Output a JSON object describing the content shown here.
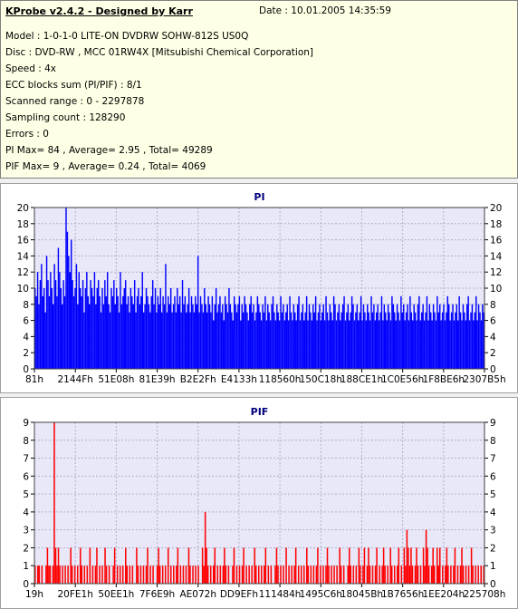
{
  "info": {
    "title": "KProbe v2.4.2 - Designed by Karr",
    "date": "Date :  10.01.2005 14:35:59",
    "lines": [
      "Model : 1-0-1-0 LITE-ON DVDRW SOHW-812S  US0Q",
      "Disc : DVD-RW , MCC 01RW4X   [Mitsubishi Chemical Corporation]",
      "Speed : 4x",
      "ECC blocks sum (PI/PIF) : 8/1",
      "Scanned range : 0 - 2297878",
      "Sampling count : 128290",
      "Errors : 0",
      "PI Max= 84 , Average= 2.95 , Total= 49289",
      "PIF Max= 9 , Average= 0.24 , Total= 4069"
    ]
  },
  "colors": {
    "pi": "#0000ff",
    "pif": "#ff0000",
    "plot_bg": "#e8e8f8",
    "grid": "#b0b0d0"
  },
  "chart_data": [
    {
      "type": "bar",
      "title": "PI",
      "ylim": [
        0,
        20
      ],
      "yticks": [
        0,
        2,
        4,
        6,
        8,
        10,
        12,
        14,
        16,
        18,
        20
      ],
      "xtick_labels": [
        "81h",
        "2144Fh",
        "51E08h",
        "81E39h",
        "B2E2Fh",
        "E4133h",
        "118560h",
        "150C18h",
        "188CE1h",
        "1C0E56h",
        "1F8BE6h",
        "2307B5h"
      ],
      "grid": true,
      "values": [
        10,
        9,
        12,
        8,
        11,
        13,
        9,
        10,
        7,
        14,
        11,
        9,
        12,
        10,
        8,
        13,
        11,
        9,
        15,
        12,
        10,
        8,
        11,
        9,
        20,
        17,
        14,
        12,
        16,
        11,
        9,
        10,
        13,
        8,
        12,
        10,
        9,
        11,
        7,
        10,
        12,
        9,
        8,
        11,
        10,
        9,
        12,
        8,
        10,
        11,
        9,
        7,
        10,
        8,
        11,
        9,
        12,
        8,
        7,
        10,
        9,
        11,
        8,
        10,
        9,
        7,
        12,
        8,
        9,
        10,
        11,
        8,
        9,
        7,
        10,
        9,
        8,
        11,
        7,
        9,
        10,
        8,
        9,
        12,
        7,
        8,
        10,
        9,
        8,
        7,
        9,
        11,
        8,
        10,
        7,
        9,
        8,
        10,
        7,
        9,
        8,
        13,
        7,
        9,
        8,
        10,
        7,
        8,
        9,
        7,
        10,
        8,
        9,
        7,
        11,
        8,
        9,
        7,
        8,
        10,
        7,
        9,
        8,
        7,
        9,
        8,
        14,
        7,
        9,
        8,
        7,
        10,
        8,
        7,
        9,
        8,
        7,
        9,
        6,
        8,
        10,
        7,
        8,
        9,
        7,
        8,
        6,
        9,
        8,
        7,
        10,
        8,
        7,
        6,
        9,
        8,
        7,
        8,
        9,
        6,
        8,
        7,
        9,
        8,
        7,
        6,
        8,
        9,
        7,
        8,
        6,
        7,
        9,
        8,
        7,
        6,
        8,
        7,
        9,
        6,
        8,
        7,
        6,
        8,
        9,
        7,
        6,
        8,
        7,
        6,
        9,
        7,
        8,
        6,
        7,
        8,
        6,
        9,
        7,
        6,
        8,
        7,
        6,
        8,
        9,
        6,
        7,
        8,
        6,
        7,
        9,
        6,
        8,
        7,
        6,
        8,
        7,
        9,
        6,
        7,
        8,
        6,
        7,
        8,
        6,
        9,
        7,
        6,
        8,
        7,
        6,
        9,
        8,
        6,
        7,
        8,
        6,
        7,
        8,
        9,
        6,
        7,
        8,
        6,
        7,
        9,
        8,
        6,
        7,
        8,
        6,
        7,
        9,
        6,
        8,
        7,
        6,
        8,
        7,
        6,
        9,
        7,
        8,
        6,
        7,
        8,
        6,
        7,
        9,
        6,
        8,
        7,
        6,
        8,
        7,
        6,
        9,
        8,
        7,
        6,
        8,
        7,
        6,
        9,
        7,
        8,
        6,
        7,
        8,
        6,
        9,
        7,
        6,
        8,
        7,
        6,
        8,
        9,
        6,
        7,
        8,
        6,
        7,
        9,
        6,
        8,
        7,
        6,
        8,
        7,
        6,
        9,
        7,
        8,
        6,
        7,
        8,
        6,
        7,
        9,
        8,
        6,
        7,
        8,
        6,
        7,
        8,
        6,
        9,
        7,
        6,
        8,
        7,
        6,
        8,
        9,
        6,
        7,
        8,
        6,
        7,
        9,
        6,
        8,
        7,
        6,
        8,
        7
      ]
    },
    {
      "type": "bar",
      "title": "PIF",
      "ylim": [
        0,
        9
      ],
      "yticks": [
        0,
        1,
        2,
        3,
        4,
        5,
        6,
        7,
        8,
        9
      ],
      "xtick_labels": [
        "19h",
        "20FE1h",
        "50EE1h",
        "7F6E9h",
        "AE072h",
        "DD9EFh",
        "111484h",
        "1495C6h",
        "18045Bh",
        "1B7656h",
        "1EE204h",
        "225708h"
      ],
      "grid": true,
      "values": [
        1,
        0,
        1,
        1,
        0,
        1,
        0,
        0,
        1,
        2,
        1,
        1,
        0,
        1,
        9,
        2,
        1,
        2,
        1,
        0,
        1,
        0,
        1,
        0,
        1,
        0,
        2,
        1,
        0,
        1,
        0,
        1,
        0,
        2,
        1,
        0,
        1,
        0,
        1,
        0,
        2,
        0,
        1,
        0,
        1,
        2,
        0,
        1,
        0,
        1,
        0,
        2,
        1,
        0,
        1,
        0,
        0,
        1,
        2,
        0,
        1,
        0,
        1,
        0,
        1,
        0,
        2,
        1,
        0,
        1,
        0,
        1,
        0,
        0,
        2,
        1,
        0,
        1,
        0,
        1,
        0,
        1,
        2,
        0,
        1,
        0,
        1,
        0,
        0,
        1,
        2,
        1,
        0,
        1,
        0,
        1,
        0,
        2,
        0,
        1,
        0,
        1,
        0,
        1,
        2,
        0,
        1,
        0,
        1,
        0,
        1,
        0,
        2,
        1,
        0,
        1,
        0,
        1,
        0,
        1,
        0,
        0,
        2,
        1,
        4,
        2,
        1,
        0,
        1,
        0,
        1,
        2,
        0,
        1,
        0,
        1,
        0,
        1,
        2,
        1,
        0,
        1,
        0,
        0,
        1,
        2,
        0,
        1,
        0,
        1,
        0,
        1,
        2,
        0,
        1,
        0,
        1,
        0,
        1,
        0,
        2,
        1,
        0,
        1,
        0,
        1,
        0,
        1,
        2,
        0,
        1,
        0,
        1,
        0,
        0,
        1,
        2,
        1,
        0,
        1,
        0,
        1,
        0,
        2,
        0,
        1,
        0,
        1,
        0,
        1,
        2,
        0,
        1,
        0,
        1,
        0,
        1,
        0,
        2,
        1,
        0,
        1,
        0,
        1,
        0,
        1,
        2,
        0,
        1,
        0,
        1,
        0,
        1,
        2,
        1,
        0,
        1,
        0,
        1,
        0,
        1,
        0,
        2,
        1,
        0,
        1,
        0,
        0,
        1,
        2,
        1,
        0,
        1,
        0,
        1,
        0,
        2,
        1,
        0,
        1,
        2,
        0,
        1,
        2,
        1,
        0,
        1,
        0,
        1,
        2,
        0,
        1,
        0,
        1,
        2,
        1,
        0,
        1,
        0,
        2,
        1,
        0,
        1,
        0,
        1,
        2,
        0,
        1,
        0,
        2,
        1,
        3,
        2,
        1,
        2,
        1,
        0,
        1,
        2,
        1,
        0,
        1,
        0,
        2,
        1,
        3,
        2,
        1,
        0,
        1,
        2,
        1,
        0,
        2,
        1,
        2,
        0,
        1,
        0,
        1,
        2,
        1,
        0,
        1,
        0,
        1,
        2,
        0,
        1,
        0,
        1,
        2,
        1,
        0,
        1,
        0,
        1,
        0,
        2,
        1,
        0,
        1,
        0,
        1,
        0,
        1,
        0,
        1
      ]
    }
  ]
}
